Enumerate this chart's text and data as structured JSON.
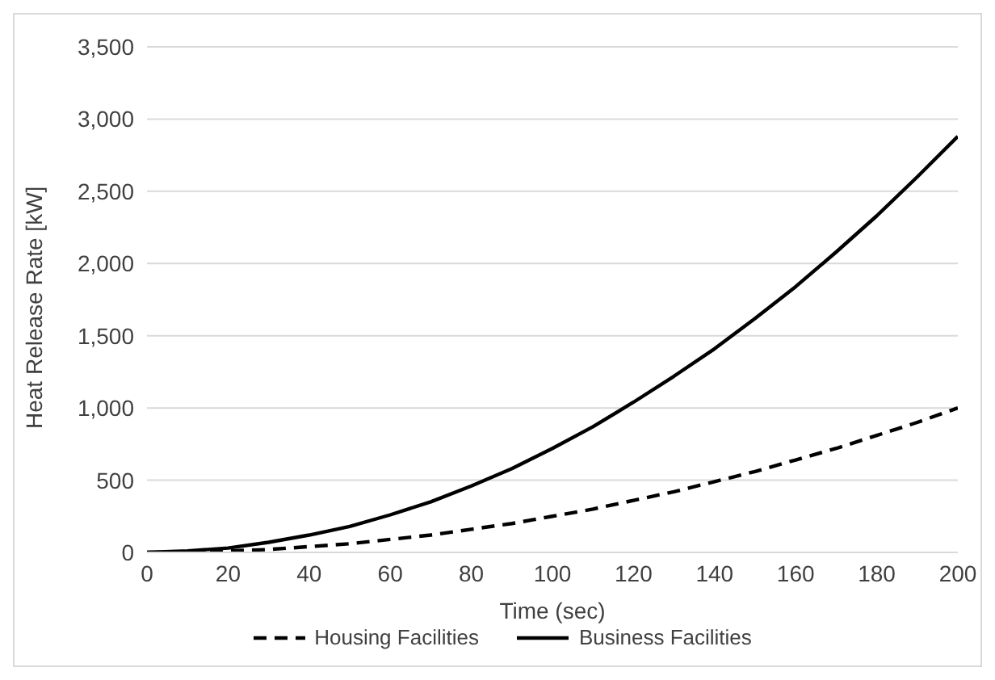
{
  "chart_data": {
    "type": "line",
    "xlabel": "Time (sec)",
    "ylabel": "Heat Release Rate [kW]",
    "x": [
      0,
      10,
      20,
      30,
      40,
      50,
      60,
      70,
      80,
      90,
      100,
      110,
      120,
      130,
      140,
      150,
      160,
      170,
      180,
      190,
      200
    ],
    "series": [
      {
        "name": "Housing Facilities",
        "color": "#000000",
        "line_style": "dashed",
        "values": [
          0,
          0,
          10,
          20,
          40,
          60,
          90,
          120,
          160,
          200,
          250,
          300,
          360,
          420,
          490,
          560,
          640,
          720,
          810,
          900,
          1000
        ]
      },
      {
        "name": "Business Facilities",
        "color": "#000000",
        "line_style": "solid",
        "values": [
          0,
          10,
          30,
          70,
          120,
          180,
          260,
          350,
          460,
          580,
          720,
          870,
          1040,
          1220,
          1410,
          1620,
          1840,
          2080,
          2330,
          2600,
          2880
        ]
      }
    ],
    "xlim": [
      0,
      200
    ],
    "xticks": [
      0,
      20,
      40,
      60,
      80,
      100,
      120,
      140,
      160,
      180,
      200
    ],
    "ylim": [
      0,
      3500
    ],
    "yticks": [
      0,
      500,
      {
        "value": 1000,
        "label": "1,000"
      },
      {
        "value": 1500,
        "label": "1,500"
      },
      {
        "value": 2000,
        "label": "2,000"
      },
      {
        "value": 2500,
        "label": "2,500"
      },
      {
        "value": 3000,
        "label": "3,000"
      },
      {
        "value": 3500,
        "label": "3,500"
      }
    ],
    "grid": "y",
    "legend": "bottom",
    "marker": "none"
  }
}
